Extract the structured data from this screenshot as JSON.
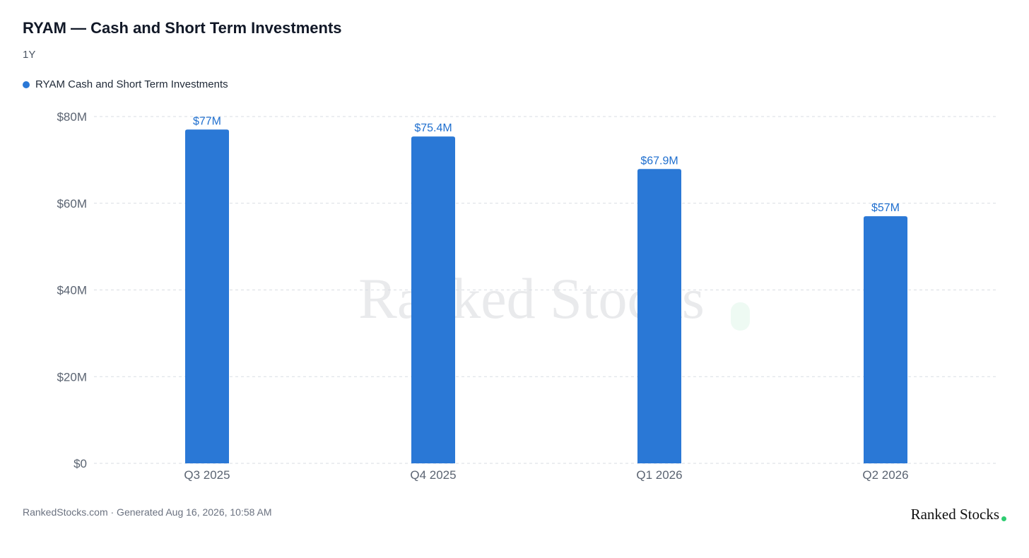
{
  "header": {
    "title": "RYAM — Cash and Short Term Investments",
    "period": "1Y"
  },
  "legend": {
    "label": "RYAM Cash and Short Term Investments"
  },
  "watermark": {
    "text": "Ranked Stocks"
  },
  "footer": {
    "generated": "RankedStocks.com · Generated Aug 16, 2026, 10:58 AM",
    "brand": "Ranked Stocks"
  },
  "colors": {
    "bar": "#2a78d6",
    "data_label": "#1f6fcf",
    "brand_dot": "#2ecc71",
    "grid": "#d9dde3",
    "axis_text": "#5b6472"
  },
  "chart_data": {
    "type": "bar",
    "categories": [
      "Q3 2025",
      "Q4 2025",
      "Q1 2026",
      "Q2 2026"
    ],
    "series": [
      {
        "name": "RYAM Cash and Short Term Investments",
        "values": [
          77,
          75.4,
          67.9,
          57
        ],
        "labels": [
          "$77M",
          "$75.4M",
          "$67.9M",
          "$57M"
        ]
      }
    ],
    "unit": "$M",
    "ylim": [
      0,
      80
    ],
    "yticks": [
      0,
      20,
      40,
      60,
      80
    ],
    "ytick_labels": [
      "$0",
      "$20M",
      "$40M",
      "$60M",
      "$80M"
    ],
    "grid": true,
    "legend_position": "top-left"
  }
}
